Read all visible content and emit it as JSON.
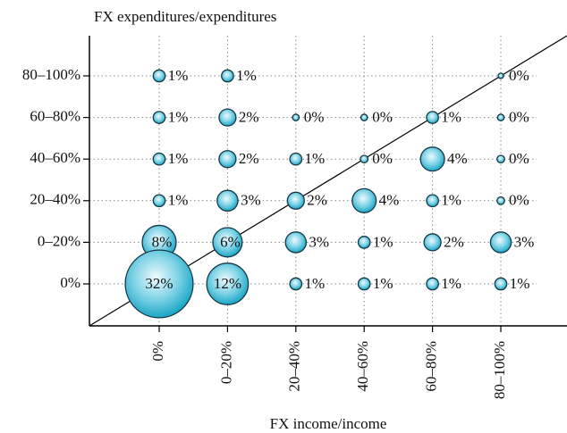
{
  "chart_data": {
    "type": "bubble",
    "title": "FX expenditures/expenditures",
    "x_label": "FX income/income",
    "x_categories": [
      "0%",
      "0–20%",
      "20–40%",
      "40–60%",
      "60–80%",
      "80–100%"
    ],
    "y_categories": [
      "0%",
      "0–20%",
      "20–40%",
      "40–60%",
      "60–80%",
      "80–100%"
    ],
    "grid": true,
    "color": "#1aa6c6",
    "x": [
      "0%",
      "0–20%",
      "80–100%",
      "0%",
      "0–20%",
      "20–40%",
      "40–60%",
      "60–80%",
      "80–100%",
      "0%",
      "0–20%",
      "20–40%",
      "40–60%",
      "60–80%",
      "80–100%",
      "0%",
      "0–20%",
      "20–40%",
      "40–60%",
      "60–80%",
      "80–100%",
      "0%",
      "0–20%",
      "20–40%",
      "40–60%",
      "60–80%",
      "80–100%",
      "0%",
      "0–20%",
      "20–40%",
      "40–60%",
      "60–80%",
      "80–100%"
    ],
    "y": [
      "80–100%",
      "80–100%",
      "80–100%",
      "60–80%",
      "60–80%",
      "60–80%",
      "60–80%",
      "60–80%",
      "60–80%",
      "40–60%",
      "40–60%",
      "40–60%",
      "40–60%",
      "40–60%",
      "40–60%",
      "20–40%",
      "20–40%",
      "20–40%",
      "20–40%",
      "20–40%",
      "20–40%",
      "0–20%",
      "0–20%",
      "0–20%",
      "0–20%",
      "0–20%",
      "0–20%",
      "0%",
      "0%",
      "0%",
      "0%",
      "0%",
      "0%"
    ],
    "values": [
      1,
      1,
      0.2,
      1,
      2,
      0.3,
      0.3,
      1,
      0.3,
      1,
      2,
      1,
      0.4,
      4,
      0.4,
      1,
      3,
      2,
      4,
      1,
      0.4,
      8,
      6,
      3,
      1,
      2,
      3,
      32,
      12,
      1,
      1,
      1,
      1
    ],
    "value_labels": [
      "1%",
      "1%",
      "0%",
      "1%",
      "2%",
      "0%",
      "0%",
      "1%",
      "0%",
      "1%",
      "2%",
      "1%",
      "0%",
      "4%",
      "0%",
      "1%",
      "3%",
      "2%",
      "4%",
      "1%",
      "0%",
      "8%",
      "6%",
      "3%",
      "1%",
      "2%",
      "3%",
      "32%",
      "12%",
      "1%",
      "1%",
      "1%",
      "1%"
    ]
  }
}
